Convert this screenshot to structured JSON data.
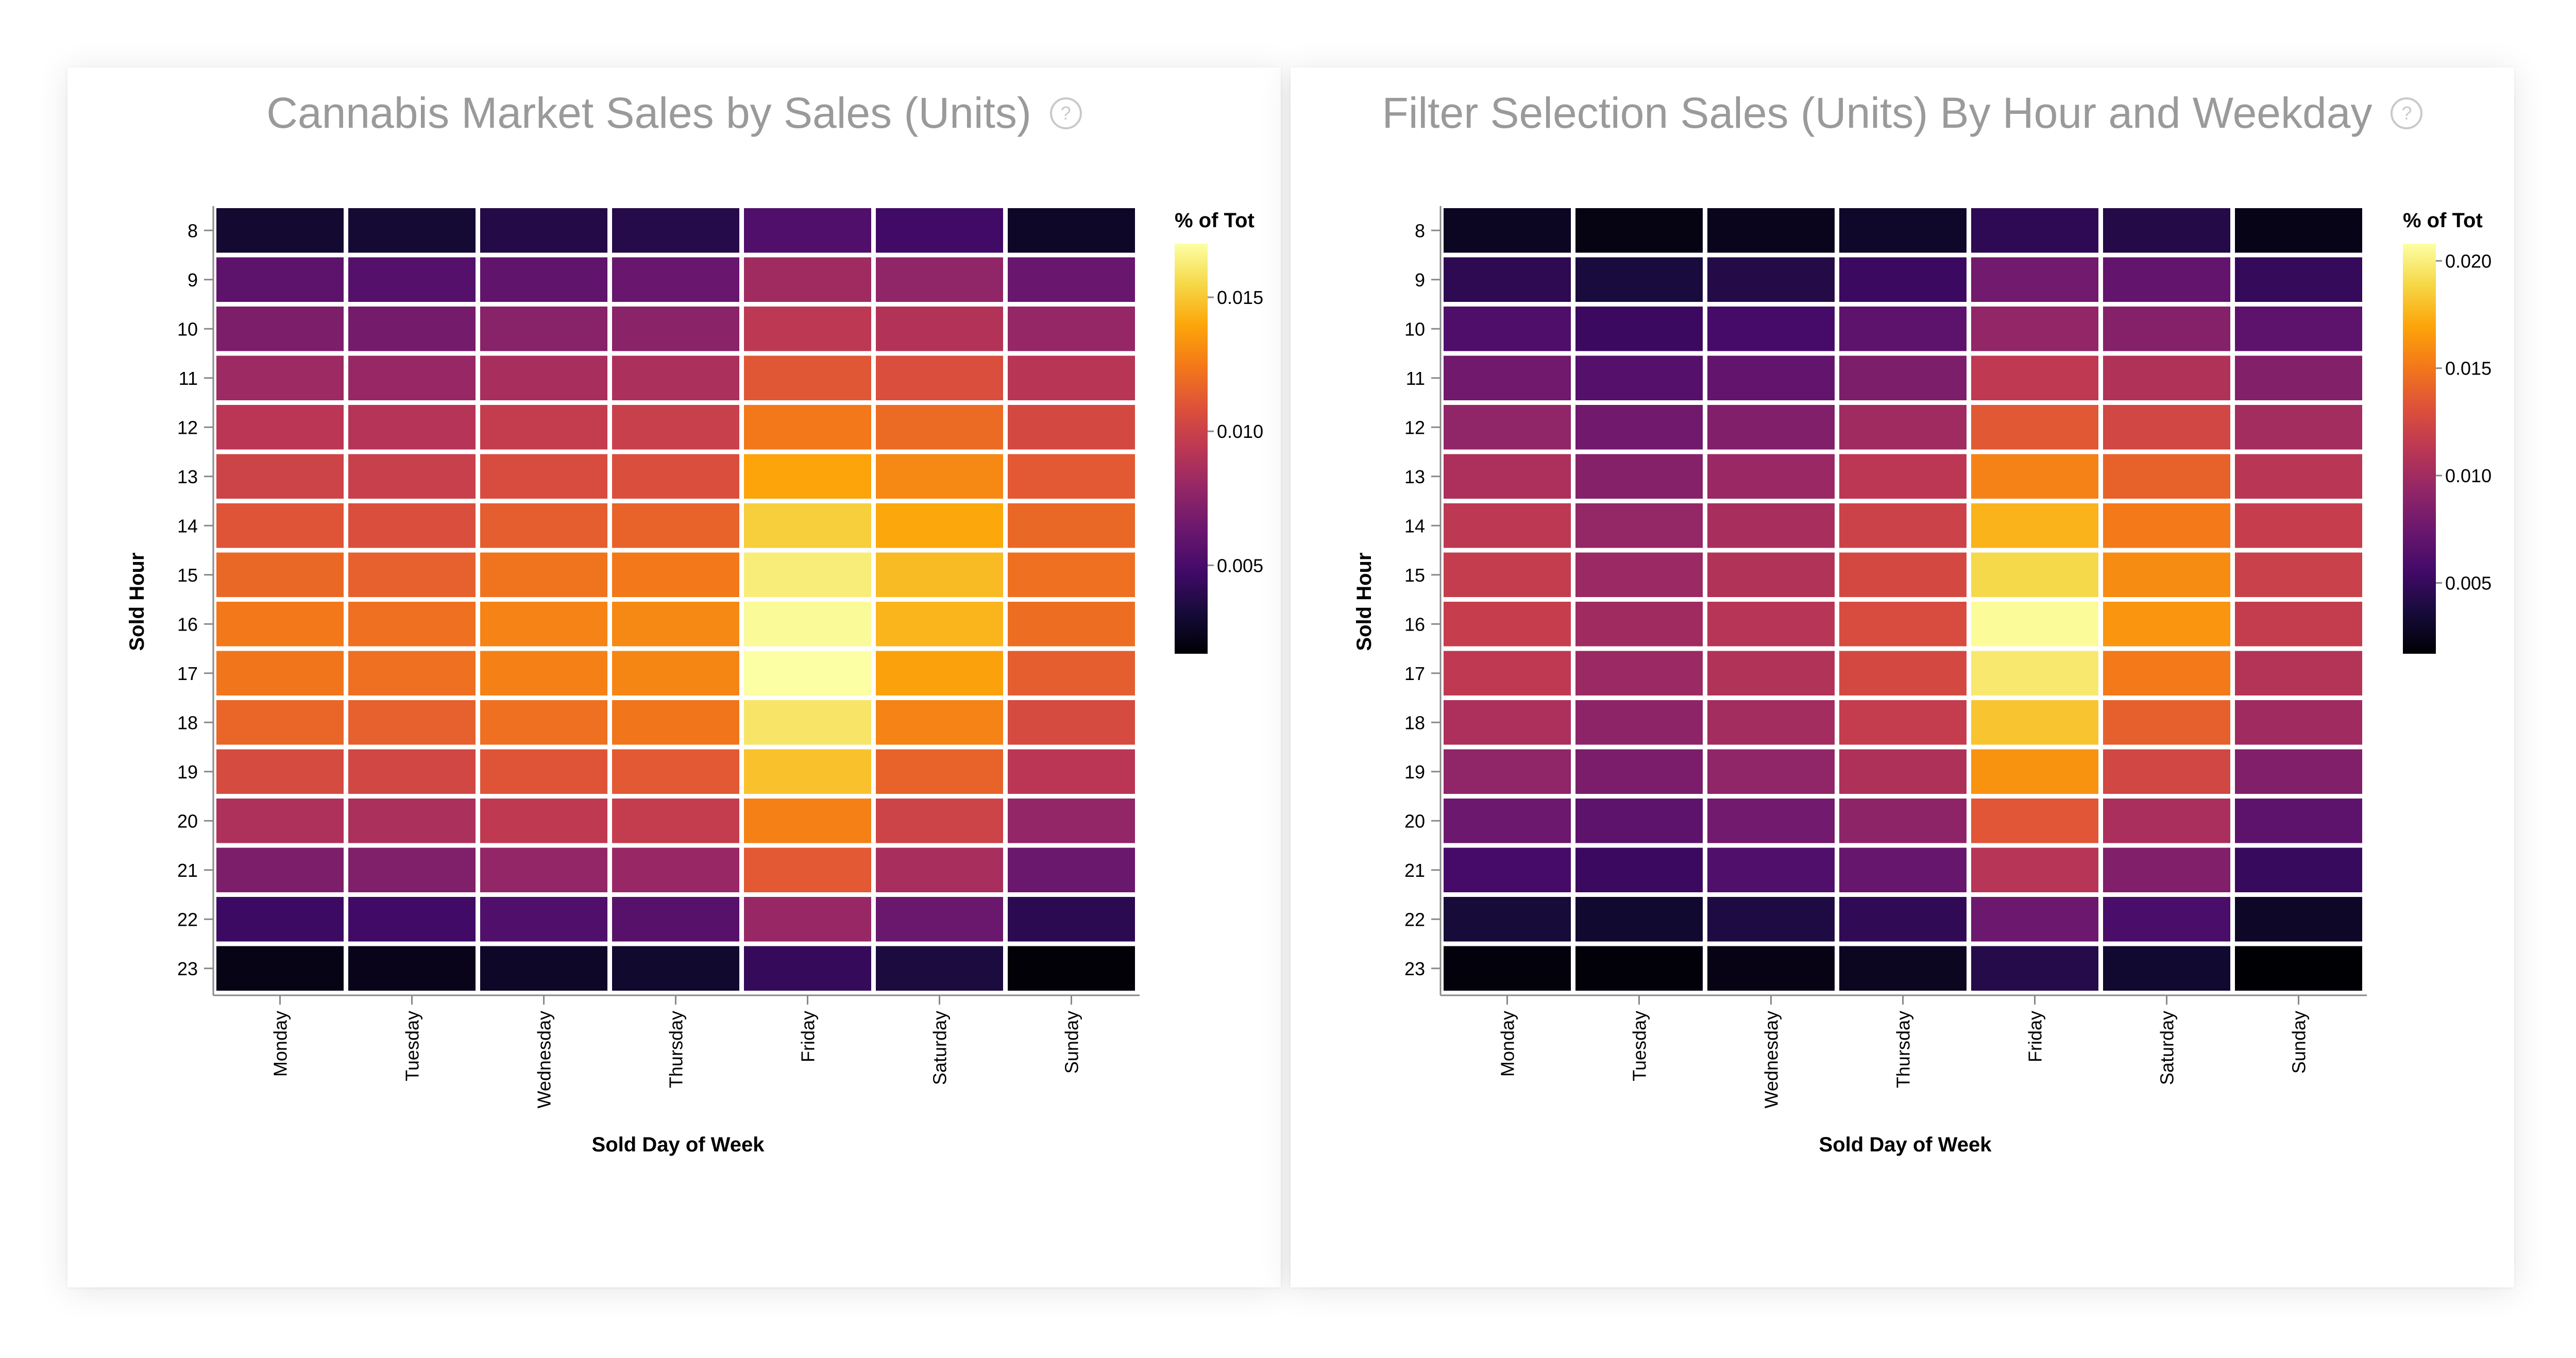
{
  "panels": [
    {
      "title": "Cannabis Market Sales by Sales (Units)",
      "help_icon": "question-circle-icon"
    },
    {
      "title": "Filter Selection Sales (Units) By Hour and Weekday",
      "help_icon": "question-circle-icon"
    }
  ],
  "chart_data": [
    {
      "type": "heatmap",
      "title": "Cannabis Market Sales by Sales (Units)",
      "xlabel": "Sold Day of Week",
      "ylabel": "Sold Hour",
      "x": [
        "Monday",
        "Tuesday",
        "Wednesday",
        "Thursday",
        "Friday",
        "Saturday",
        "Sunday"
      ],
      "y": [
        "8",
        "9",
        "10",
        "11",
        "12",
        "13",
        "14",
        "15",
        "16",
        "17",
        "18",
        "19",
        "20",
        "21",
        "22",
        "23"
      ],
      "legend_title": "% of Tot",
      "legend_ticks": [
        "0.015",
        "0.010",
        "0.005"
      ],
      "legend_tick_values": [
        0.015,
        0.01,
        0.005
      ],
      "color_domain": [
        0.0017,
        0.017
      ],
      "colormap": "inferno",
      "values": [
        [
          0.003,
          0.0031,
          0.0037,
          0.0038,
          0.0053,
          0.0047,
          0.0027
        ],
        [
          0.0058,
          0.0055,
          0.0059,
          0.0062,
          0.0083,
          0.0077,
          0.0062
        ],
        [
          0.007,
          0.0067,
          0.0074,
          0.0075,
          0.0094,
          0.009,
          0.0079
        ],
        [
          0.0082,
          0.008,
          0.0086,
          0.0087,
          0.0111,
          0.0107,
          0.0092
        ],
        [
          0.0093,
          0.0091,
          0.0097,
          0.0099,
          0.0124,
          0.0119,
          0.0104
        ],
        [
          0.0101,
          0.0099,
          0.0106,
          0.0107,
          0.0139,
          0.013,
          0.0112
        ],
        [
          0.011,
          0.0107,
          0.0114,
          0.0116,
          0.0152,
          0.014,
          0.0118
        ],
        [
          0.0118,
          0.0115,
          0.0122,
          0.0124,
          0.0163,
          0.0146,
          0.0121
        ],
        [
          0.0124,
          0.0121,
          0.0128,
          0.013,
          0.0168,
          0.0144,
          0.012
        ],
        [
          0.0123,
          0.0121,
          0.0127,
          0.0129,
          0.017,
          0.0138,
          0.0114
        ],
        [
          0.0117,
          0.0115,
          0.0121,
          0.0123,
          0.016,
          0.0128,
          0.0105
        ],
        [
          0.0105,
          0.0103,
          0.011,
          0.0112,
          0.0148,
          0.0116,
          0.0093
        ],
        [
          0.0088,
          0.0087,
          0.0095,
          0.0097,
          0.0127,
          0.0101,
          0.0078
        ],
        [
          0.007,
          0.0071,
          0.0078,
          0.008,
          0.0112,
          0.0086,
          0.0063
        ],
        [
          0.0046,
          0.0047,
          0.0053,
          0.0056,
          0.008,
          0.0063,
          0.004
        ],
        [
          0.0022,
          0.0023,
          0.0027,
          0.0029,
          0.0043,
          0.0034,
          0.0018
        ]
      ]
    },
    {
      "type": "heatmap",
      "title": "Filter Selection Sales (Units) By Hour and Weekday",
      "xlabel": "Sold Day of Week",
      "ylabel": "Sold Hour",
      "x": [
        "Monday",
        "Tuesday",
        "Wednesday",
        "Thursday",
        "Friday",
        "Saturday",
        "Sunday"
      ],
      "y": [
        "8",
        "9",
        "10",
        "11",
        "12",
        "13",
        "14",
        "15",
        "16",
        "17",
        "18",
        "19",
        "20",
        "21",
        "22",
        "23"
      ],
      "legend_title": "% of Tot",
      "legend_ticks": [
        "0.020",
        "0.015",
        "0.010",
        "0.005"
      ],
      "legend_tick_values": [
        0.02,
        0.015,
        0.01,
        0.005
      ],
      "color_domain": [
        0.0017,
        0.0208
      ],
      "colormap": "inferno",
      "values": [
        [
          0.0028,
          0.0022,
          0.0026,
          0.0031,
          0.0047,
          0.0042,
          0.0024
        ],
        [
          0.0046,
          0.0038,
          0.0042,
          0.0052,
          0.0078,
          0.0071,
          0.005
        ],
        [
          0.0061,
          0.0052,
          0.0057,
          0.0068,
          0.0093,
          0.0087,
          0.0068
        ],
        [
          0.0077,
          0.0064,
          0.0071,
          0.0083,
          0.0114,
          0.0107,
          0.0086
        ],
        [
          0.0092,
          0.0077,
          0.0085,
          0.0099,
          0.0135,
          0.0124,
          0.0101
        ],
        [
          0.0105,
          0.0087,
          0.0096,
          0.0112,
          0.0155,
          0.014,
          0.0111
        ],
        [
          0.0113,
          0.0094,
          0.0103,
          0.0121,
          0.0175,
          0.0151,
          0.0118
        ],
        [
          0.0117,
          0.0097,
          0.0108,
          0.0126,
          0.019,
          0.0159,
          0.012
        ],
        [
          0.0118,
          0.0099,
          0.011,
          0.0128,
          0.0206,
          0.0163,
          0.0117
        ],
        [
          0.0114,
          0.0097,
          0.0108,
          0.0126,
          0.0197,
          0.0151,
          0.0109
        ],
        [
          0.0105,
          0.0091,
          0.0101,
          0.0117,
          0.0182,
          0.0139,
          0.0099
        ],
        [
          0.0092,
          0.0082,
          0.0092,
          0.0106,
          0.0162,
          0.0124,
          0.0085
        ],
        [
          0.0075,
          0.0068,
          0.0078,
          0.0091,
          0.0134,
          0.0104,
          0.0068
        ],
        [
          0.0057,
          0.0052,
          0.0062,
          0.0073,
          0.011,
          0.0085,
          0.0051
        ],
        [
          0.0036,
          0.0033,
          0.004,
          0.0048,
          0.0075,
          0.0059,
          0.003
        ],
        [
          0.002,
          0.0019,
          0.0023,
          0.0027,
          0.0043,
          0.0033,
          0.0017
        ]
      ]
    }
  ]
}
